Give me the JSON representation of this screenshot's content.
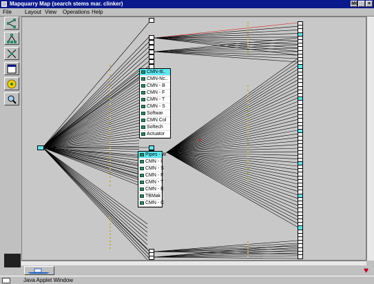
{
  "window": {
    "title": "Mapquarry Map (search stems mar. clinker)",
    "right_badge": "MCI"
  },
  "menu": [
    "File",
    "Layout",
    "View",
    "Operations",
    "Help"
  ],
  "toolbar": {
    "tools": [
      "graph-layout-icon",
      "tree-layout-icon",
      "radial-layout-icon",
      "window-icon",
      "yellow-star-icon",
      "zoom-icon"
    ]
  },
  "popup_top": {
    "items": [
      "CMN-Iti..",
      "CMN-Nc..",
      "CMN - B",
      "CMN - F",
      "CMN - T",
      "CMN - S",
      "Softwar",
      "CMN Col",
      "Softech",
      "Actuator"
    ]
  },
  "popup_mid": {
    "items": [
      "Pipes - W",
      "CMN - I",
      "CMN - S",
      "CMN - F",
      "CMN - T",
      "CMN - E",
      "TBMak",
      "CMN - C"
    ]
  },
  "status": {
    "text": "Java Applet Window"
  },
  "colors": {
    "title_bar": "#0a1a8c",
    "selection": "#5fe8f0",
    "edge": "#000000",
    "highlight_edge": "#d02020",
    "edge_marker": "#b8b040"
  }
}
